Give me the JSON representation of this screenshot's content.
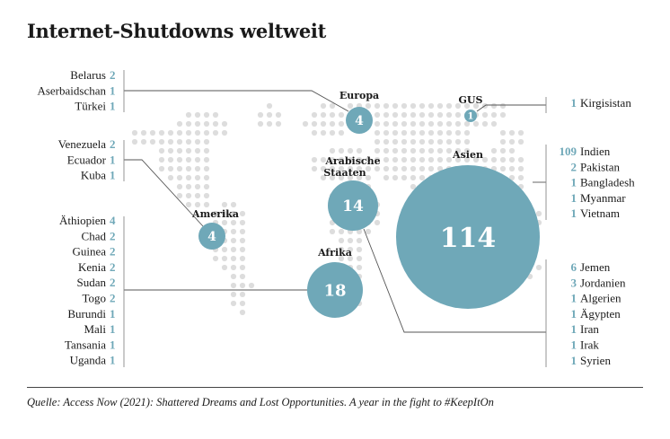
{
  "title": "Internet-Shutdowns weltweit",
  "source": "Quelle: Access Now (2021): Shattered Dreams and Lost Opportunities. A year in the fight to #KeepItOn",
  "colors": {
    "bubble": "#6fa8b8",
    "dots": "#dddddd",
    "lines": "#555555",
    "numbers": "#6fa8b8"
  },
  "chart_data": {
    "type": "bubble-map",
    "regions": [
      {
        "name": "Europa",
        "value": 4
      },
      {
        "name": "GUS",
        "value": 1
      },
      {
        "name": "Asien",
        "value": 114
      },
      {
        "name": "Arabische Staaten",
        "value": 14
      },
      {
        "name": "Amerika",
        "value": 4
      },
      {
        "name": "Afrika",
        "value": 18
      }
    ],
    "country_lists": [
      {
        "region": "Europa",
        "side": "left",
        "items": [
          {
            "country": "Belarus",
            "count": 2
          },
          {
            "country": "Aserbaidschan",
            "count": 1
          },
          {
            "country": "Türkei",
            "count": 1
          }
        ]
      },
      {
        "region": "Amerika",
        "side": "left",
        "items": [
          {
            "country": "Venezuela",
            "count": 2
          },
          {
            "country": "Ecuador",
            "count": 1
          },
          {
            "country": "Kuba",
            "count": 1
          }
        ]
      },
      {
        "region": "Afrika",
        "side": "left",
        "items": [
          {
            "country": "Äthiopien",
            "count": 4
          },
          {
            "country": "Chad",
            "count": 2
          },
          {
            "country": "Guinea",
            "count": 2
          },
          {
            "country": "Kenia",
            "count": 2
          },
          {
            "country": "Sudan",
            "count": 2
          },
          {
            "country": "Togo",
            "count": 2
          },
          {
            "country": "Burundi",
            "count": 1
          },
          {
            "country": "Mali",
            "count": 1
          },
          {
            "country": "Tansania",
            "count": 1
          },
          {
            "country": "Uganda",
            "count": 1
          }
        ]
      },
      {
        "region": "GUS",
        "side": "right",
        "items": [
          {
            "country": "Kirgisistan",
            "count": 1
          }
        ]
      },
      {
        "region": "Asien",
        "side": "right",
        "items": [
          {
            "country": "Indien",
            "count": 109
          },
          {
            "country": "Pakistan",
            "count": 2
          },
          {
            "country": "Bangladesh",
            "count": 1
          },
          {
            "country": "Myanmar",
            "count": 1
          },
          {
            "country": "Vietnam",
            "count": 1
          }
        ]
      },
      {
        "region": "Arabische Staaten",
        "side": "right",
        "items": [
          {
            "country": "Jemen",
            "count": 6
          },
          {
            "country": "Jordanien",
            "count": 3
          },
          {
            "country": "Algerien",
            "count": 1
          },
          {
            "country": "Ägypten",
            "count": 1
          },
          {
            "country": "Iran",
            "count": 1
          },
          {
            "country": "Irak",
            "count": 1
          },
          {
            "country": "Syrien",
            "count": 1
          }
        ]
      }
    ]
  }
}
